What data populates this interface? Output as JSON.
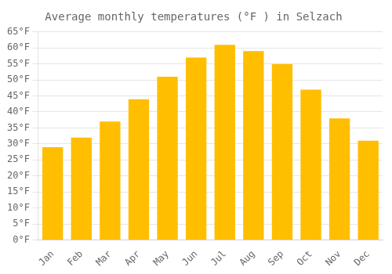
{
  "chart_data": {
    "type": "bar",
    "title": "Average monthly temperatures (°F ) in Selzach",
    "categories": [
      "Jan",
      "Feb",
      "Mar",
      "Apr",
      "May",
      "Jun",
      "Jul",
      "Aug",
      "Sep",
      "Oct",
      "Nov",
      "Dec"
    ],
    "values": [
      29,
      32,
      37,
      44,
      51,
      57,
      61,
      59,
      55,
      47,
      38,
      31
    ],
    "color": "#FFBE00",
    "ylim": [
      0,
      65
    ],
    "yticks": [
      {
        "value": 0,
        "label": "0°F"
      },
      {
        "value": 5,
        "label": "5°F"
      },
      {
        "value": 10,
        "label": "10°F"
      },
      {
        "value": 15,
        "label": "15°F"
      },
      {
        "value": 20,
        "label": "20°F"
      },
      {
        "value": 25,
        "label": "25°F"
      },
      {
        "value": 30,
        "label": "30°F"
      },
      {
        "value": 35,
        "label": "35°F"
      },
      {
        "value": 40,
        "label": "40°F"
      },
      {
        "value": 45,
        "label": "45°F"
      },
      {
        "value": 50,
        "label": "50°F"
      },
      {
        "value": 55,
        "label": "55°F"
      },
      {
        "value": 60,
        "label": "60°F"
      },
      {
        "value": 65,
        "label": "65°F"
      }
    ],
    "grid": true
  }
}
